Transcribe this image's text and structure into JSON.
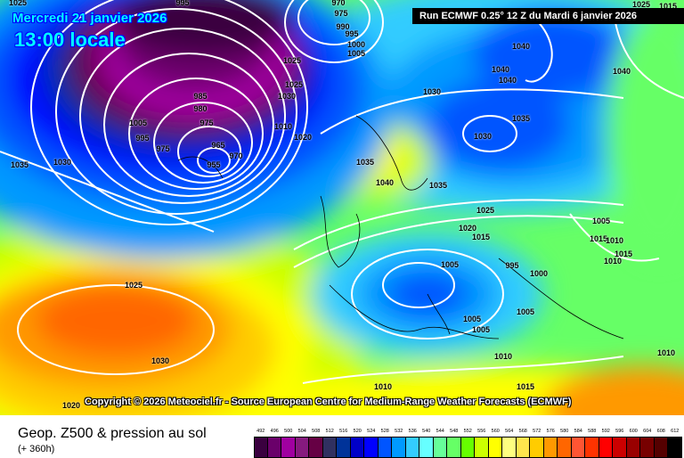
{
  "header": {
    "date": "Mercredi 21 janvier 2026",
    "time": "13:00 locale",
    "run": "Run ECMWF 0.25° 12 Z du Mardi 6 janvier 2026"
  },
  "copyright": "Copyright © 2026 Meteociel.fr - Source European Centre for Medium-Range Weather Forecasts (ECMWF)",
  "footer": {
    "title": "Geop. Z500 & pression au sol",
    "subtitle": "(+ 360h)"
  },
  "legend": {
    "values": [
      "492",
      "496",
      "500",
      "504",
      "508",
      "512",
      "516",
      "520",
      "524",
      "528",
      "532",
      "536",
      "540",
      "544",
      "548",
      "552",
      "556",
      "560",
      "564",
      "568",
      "572",
      "576",
      "580",
      "584",
      "588",
      "592",
      "596",
      "600",
      "604",
      "608",
      "612"
    ],
    "colors": [
      "#3a003f",
      "#6a006a",
      "#a000a0",
      "#861a7e",
      "#660044",
      "#303060",
      "#003399",
      "#0000c8",
      "#0000ff",
      "#0055ff",
      "#0099ff",
      "#33ccff",
      "#66ffff",
      "#66ff99",
      "#66ff66",
      "#66ff00",
      "#ccff00",
      "#ffff00",
      "#ffff80",
      "#ffe64d",
      "#ffcc00",
      "#ff9900",
      "#ff6600",
      "#ff5533",
      "#ff3300",
      "#ff0000",
      "#cc0000",
      "#990000",
      "#770000",
      "#550000",
      "#000000"
    ]
  },
  "isobar_labels": [
    "1025",
    "995",
    "970",
    "975",
    "990",
    "995",
    "1000",
    "1005",
    "1040",
    "1040",
    "1040",
    "1040",
    "1030",
    "1025",
    "1015",
    "985",
    "980",
    "975",
    "965",
    "970",
    "955",
    "1005",
    "995",
    "975",
    "1025",
    "1025",
    "1010",
    "1020",
    "1030",
    "1035",
    "1035",
    "1040",
    "1035",
    "1030",
    "1030",
    "1035",
    "1025",
    "1020",
    "1015",
    "1005",
    "995",
    "1000",
    "1005",
    "1015",
    "1010",
    "1015",
    "1010",
    "1025",
    "1030",
    "1005",
    "1005",
    "1005",
    "1010",
    "1010",
    "1015",
    "1010",
    "1020"
  ]
}
